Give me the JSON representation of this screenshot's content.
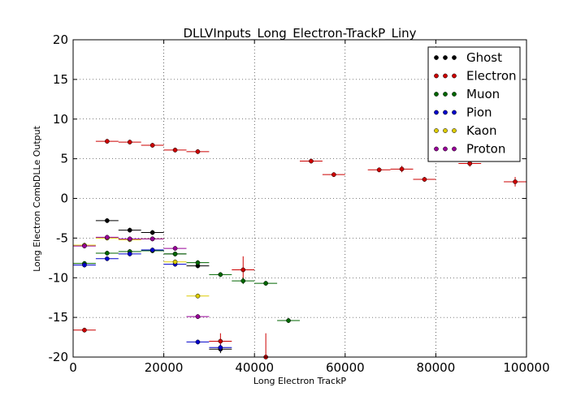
{
  "chart_data": {
    "type": "scatter",
    "title": "DLLVInputs_Long_Electron-TrackP_Liny",
    "xlabel": "Long Electron TrackP",
    "ylabel": "Long Electron CombDLLe Output",
    "xlim": [
      0,
      100000
    ],
    "ylim": [
      -20,
      20
    ],
    "x_ticks": [
      0,
      20000,
      40000,
      60000,
      80000,
      100000
    ],
    "y_ticks": [
      -20,
      -15,
      -10,
      -5,
      0,
      5,
      10,
      15,
      20
    ],
    "grid": true,
    "legend_position": "top-right",
    "series": [
      {
        "name": "Ghost",
        "color": "#000000",
        "x": [
          7500,
          12500,
          17500,
          22500,
          27500,
          32500
        ],
        "y": [
          -2.8,
          -4.0,
          -4.3,
          -7.0,
          -8.5,
          -19.0
        ],
        "yerr": [
          0.3,
          0.3,
          0.3,
          0.3,
          0.3,
          0.5
        ]
      },
      {
        "name": "Electron",
        "color": "#cc0000",
        "x": [
          2500,
          7500,
          12500,
          17500,
          22500,
          27500,
          32500,
          37500,
          42500,
          52500,
          57500,
          67500,
          72500,
          77500,
          87500,
          97500
        ],
        "y": [
          -16.6,
          7.2,
          7.1,
          6.7,
          6.1,
          5.9,
          -18.0,
          -9.0,
          -20.0,
          4.7,
          3.0,
          3.6,
          3.7,
          2.4,
          4.4,
          2.1
        ],
        "yerr": [
          0.3,
          0.3,
          0.3,
          0.3,
          0.3,
          0.3,
          1.0,
          1.7,
          3.0,
          0.3,
          0.3,
          0.3,
          0.4,
          0.3,
          0.4,
          0.6
        ]
      },
      {
        "name": "Muon",
        "color": "#006600",
        "x": [
          2500,
          7500,
          12500,
          17500,
          22500,
          27500,
          32500,
          37500,
          42500,
          47500
        ],
        "y": [
          -8.2,
          -6.9,
          -6.7,
          -6.6,
          -7.0,
          -8.1,
          -9.6,
          -10.4,
          -10.7,
          -15.4
        ],
        "yerr": [
          0.3,
          0.3,
          0.3,
          0.3,
          0.3,
          0.3,
          0.3,
          0.4,
          0.3,
          0.3
        ]
      },
      {
        "name": "Pion",
        "color": "#0000cc",
        "x": [
          2500,
          7500,
          12500,
          17500,
          22500,
          27500,
          32500
        ],
        "y": [
          -8.4,
          -7.6,
          -7.0,
          -6.5,
          -8.3,
          -18.1,
          -18.8
        ],
        "yerr": [
          0.3,
          0.3,
          0.3,
          0.3,
          0.3,
          0.3,
          0.4
        ]
      },
      {
        "name": "Kaon",
        "color": "#ddcc00",
        "x": [
          2500,
          7500,
          12500,
          17500,
          22500,
          27500
        ],
        "y": [
          -5.9,
          -5.0,
          -5.2,
          -5.1,
          -8.0,
          -12.3
        ],
        "yerr": [
          0.3,
          0.3,
          0.3,
          0.3,
          0.3,
          0.3
        ]
      },
      {
        "name": "Proton",
        "color": "#990099",
        "x": [
          2500,
          7500,
          12500,
          17500,
          22500,
          27500
        ],
        "y": [
          -6.0,
          -4.9,
          -5.1,
          -5.1,
          -6.3,
          -14.9
        ],
        "yerr": [
          0.3,
          0.3,
          0.3,
          0.3,
          0.3,
          0.3
        ]
      }
    ]
  }
}
